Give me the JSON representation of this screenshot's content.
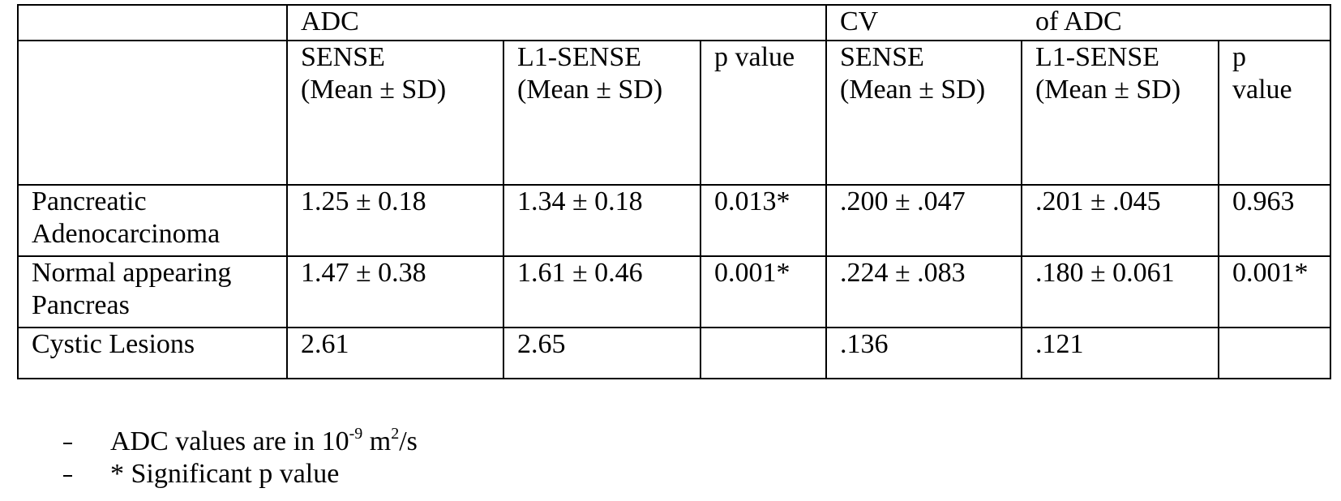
{
  "table": {
    "group_headers": [
      "ADC",
      "CV",
      "of ADC"
    ],
    "column_headers": [
      [
        "SENSE",
        "(Mean ± SD)"
      ],
      [
        "L1-SENSE",
        "(Mean ± SD)"
      ],
      [
        "p value"
      ],
      [
        "SENSE",
        "(Mean ± SD)"
      ],
      [
        "L1-SENSE",
        "(Mean ± SD)"
      ],
      [
        "p",
        "value"
      ]
    ],
    "rows": [
      [
        [
          "Pancreatic",
          "Adenocarcinoma"
        ],
        "1.25 ± 0.18",
        "1.34 ± 0.18",
        "0.013*",
        ".200 ± .047",
        ".201 ± .045",
        "0.963"
      ],
      [
        [
          "Normal appearing",
          "Pancreas"
        ],
        "1.47 ± 0.38",
        "1.61 ± 0.46",
        "0.001*",
        ".224 ± .083",
        ".180 ± 0.061",
        "0.001*"
      ],
      [
        [
          "Cystic Lesions"
        ],
        "2.61",
        "2.65",
        "",
        ".136",
        ".121",
        ""
      ]
    ]
  },
  "notes": [
    {
      "text": "ADC values are in 10",
      "exponent": "-9",
      "unit": " m",
      "unit_exponent": "2",
      "unit_rest": "/s"
    },
    {
      "text": "* Significant p value"
    }
  ]
}
